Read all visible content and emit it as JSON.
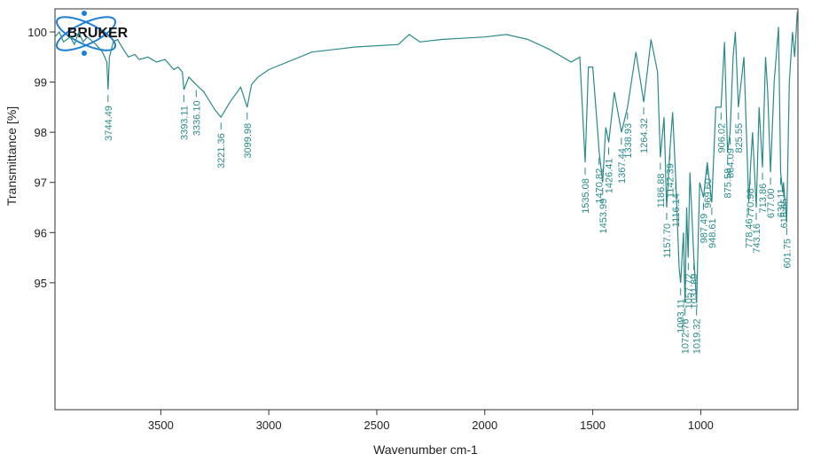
{
  "chart_data": {
    "type": "line",
    "logo": "BRUKER",
    "x_label": "Wavenumber cm-1",
    "y_label": "Transmittance [%]",
    "color": "#2a8a8a",
    "xlim": [
      3990,
      550
    ],
    "ylim": [
      92.47,
      100.46
    ],
    "xticks": [
      3500,
      3000,
      2500,
      2000,
      1500,
      1000
    ],
    "yticks": [
      95,
      96,
      97,
      98,
      99,
      100
    ],
    "x": [
      3990,
      3970,
      3950,
      3920,
      3900,
      3880,
      3860,
      3840,
      3800,
      3770,
      3750,
      3744,
      3738,
      3720,
      3700,
      3680,
      3650,
      3620,
      3600,
      3560,
      3520,
      3480,
      3440,
      3420,
      3400,
      3393,
      3370,
      3336,
      3300,
      3250,
      3221,
      3180,
      3130,
      3100,
      3080,
      3050,
      3000,
      2800,
      2600,
      2400,
      2350,
      2300,
      2200,
      2000,
      1900,
      1800,
      1700,
      1600,
      1560,
      1535,
      1520,
      1500,
      1470,
      1454,
      1440,
      1426,
      1400,
      1367,
      1350,
      1339,
      1300,
      1264,
      1230,
      1200,
      1187,
      1170,
      1158,
      1142,
      1130,
      1116,
      1100,
      1093,
      1080,
      1073,
      1065,
      1058,
      1050,
      1032,
      1019,
      1005,
      987,
      970,
      949,
      930,
      906,
      890,
      876,
      864,
      850,
      840,
      826,
      800,
      778,
      771,
      760,
      743,
      730,
      714,
      700,
      690,
      677,
      660,
      640,
      630,
      620,
      617,
      602,
      590,
      575,
      565,
      553
    ],
    "values": [
      99.9,
      100.0,
      99.8,
      99.9,
      99.75,
      100.0,
      99.8,
      99.9,
      99.75,
      99.6,
      99.4,
      98.85,
      99.5,
      99.8,
      99.85,
      99.7,
      99.5,
      99.55,
      99.45,
      99.5,
      99.4,
      99.45,
      99.25,
      99.3,
      99.2,
      98.85,
      99.1,
      98.95,
      98.8,
      98.45,
      98.3,
      98.6,
      98.9,
      98.5,
      98.95,
      99.1,
      99.25,
      99.6,
      99.7,
      99.75,
      99.95,
      99.8,
      99.85,
      99.9,
      99.95,
      99.85,
      99.65,
      99.4,
      99.5,
      97.4,
      99.3,
      99.3,
      97.6,
      97.0,
      98.1,
      97.8,
      98.8,
      98.0,
      98.3,
      98.5,
      99.6,
      98.6,
      99.85,
      99.2,
      97.5,
      98.3,
      96.5,
      97.7,
      98.4,
      97.1,
      95.3,
      95.0,
      96.0,
      94.6,
      96.5,
      95.5,
      97.2,
      95.5,
      94.6,
      97.0,
      96.7,
      97.4,
      96.6,
      98.5,
      98.5,
      99.8,
      97.6,
      98.0,
      99.5,
      100.0,
      98.5,
      99.5,
      96.6,
      97.2,
      98.0,
      96.5,
      98.5,
      97.3,
      99.5,
      98.8,
      97.2,
      99.0,
      100.1,
      97.2,
      96.8,
      97.0,
      96.2,
      99.0,
      100.0,
      99.5,
      100.4
    ],
    "peaks": {
      "x": [
        3744.49,
        3393.11,
        {
          "value": 3336.1,
          "label": "3336.10"
        },
        3221.36,
        3099.98,
        1535.08,
        1470.82,
        1453.99,
        1426.41,
        1367.44,
        1338.93,
        1264.32,
        1186.88,
        {
          "value": 1157.7,
          "label": "1157.70"
        },
        1142.39,
        1116.14,
        1093.11,
        1072.76,
        1057.72,
        1031.89,
        1019.32,
        987.49,
        {
          "value": 969.6,
          "label": "969.60"
        },
        948.61,
        906.02,
        875.58,
        864.09,
        825.55,
        778.46,
        770.98,
        743.16,
        713.86,
        {
          "value": 677,
          "label": "677.00"
        },
        630.11,
        616.65,
        601.75
      ],
      "y": [
        98.85,
        98.85,
        98.95,
        98.3,
        98.5,
        97.4,
        97.6,
        97.0,
        97.8,
        98.0,
        98.5,
        98.6,
        97.5,
        96.5,
        97.7,
        97.1,
        95.0,
        94.6,
        95.5,
        95.5,
        94.6,
        96.7,
        97.4,
        96.6,
        98.5,
        97.6,
        98.0,
        98.5,
        96.6,
        97.2,
        96.5,
        97.3,
        97.2,
        97.2,
        97.0,
        96.2
      ]
    }
  }
}
